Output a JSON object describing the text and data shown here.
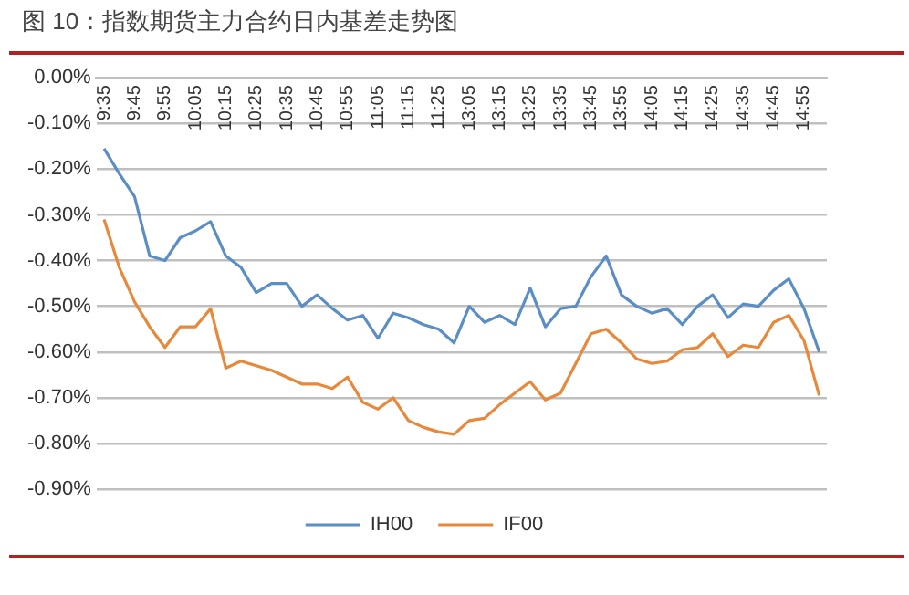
{
  "chart_data": {
    "type": "line",
    "title": "图 10：指数期货主力合约日内基差走势图",
    "categories": [
      "9:35",
      null,
      "9:45",
      null,
      "9:55",
      null,
      "10:05",
      null,
      "10:15",
      null,
      "10:25",
      null,
      "10:35",
      null,
      "10:45",
      null,
      "10:55",
      null,
      "11:05",
      null,
      "11:15",
      null,
      "11:25",
      null,
      "13:05",
      null,
      "13:15",
      null,
      "13:25",
      null,
      "13:35",
      null,
      "13:45",
      null,
      "13:55",
      null,
      "14:05",
      null,
      "14:15",
      null,
      "14:25",
      null,
      "14:35",
      null,
      "14:45",
      null,
      "14:55",
      null
    ],
    "series": [
      {
        "name": "IH00",
        "color": "#5b8ec4",
        "values": [
          -0.155,
          -0.21,
          -0.26,
          -0.39,
          -0.4,
          -0.35,
          -0.335,
          -0.315,
          -0.39,
          -0.415,
          -0.47,
          -0.45,
          -0.45,
          -0.5,
          -0.475,
          -0.505,
          -0.53,
          -0.52,
          -0.57,
          -0.515,
          -0.525,
          -0.54,
          -0.55,
          -0.58,
          -0.5,
          -0.535,
          -0.52,
          -0.54,
          -0.46,
          -0.545,
          -0.505,
          -0.5,
          -0.435,
          -0.39,
          -0.475,
          -0.5,
          -0.515,
          -0.505,
          -0.54,
          -0.5,
          -0.475,
          -0.525,
          -0.495,
          -0.5,
          -0.465,
          -0.44,
          -0.505,
          -0.6
        ]
      },
      {
        "name": "IF00",
        "color": "#e8883a",
        "values": [
          -0.31,
          -0.415,
          -0.49,
          -0.545,
          -0.59,
          -0.545,
          -0.545,
          -0.505,
          -0.635,
          -0.62,
          -0.63,
          -0.64,
          -0.655,
          -0.67,
          -0.67,
          -0.68,
          -0.655,
          -0.71,
          -0.725,
          -0.7,
          -0.75,
          -0.765,
          -0.775,
          -0.78,
          -0.75,
          -0.745,
          -0.715,
          -0.69,
          -0.665,
          -0.705,
          -0.69,
          -0.625,
          -0.56,
          -0.55,
          -0.58,
          -0.615,
          -0.625,
          -0.62,
          -0.595,
          -0.59,
          -0.56,
          -0.61,
          -0.585,
          -0.59,
          -0.535,
          -0.52,
          -0.575,
          -0.695
        ]
      }
    ],
    "ylim": [
      -0.9,
      0
    ],
    "yticks": [
      {
        "value": 0,
        "label": "0.00%"
      },
      {
        "value": -0.1,
        "label": "-0.10%"
      },
      {
        "value": -0.2,
        "label": "-0.20%"
      },
      {
        "value": -0.3,
        "label": "-0.30%"
      },
      {
        "value": -0.4,
        "label": "-0.40%"
      },
      {
        "value": -0.5,
        "label": "-0.50%"
      },
      {
        "value": -0.6,
        "label": "-0.60%"
      },
      {
        "value": -0.7,
        "label": "-0.70%"
      },
      {
        "value": -0.8,
        "label": "-0.80%"
      },
      {
        "value": -0.9,
        "label": "-0.90%"
      }
    ],
    "grid": "y",
    "legend": "bottom",
    "marker": "none",
    "line_style": "solid"
  }
}
